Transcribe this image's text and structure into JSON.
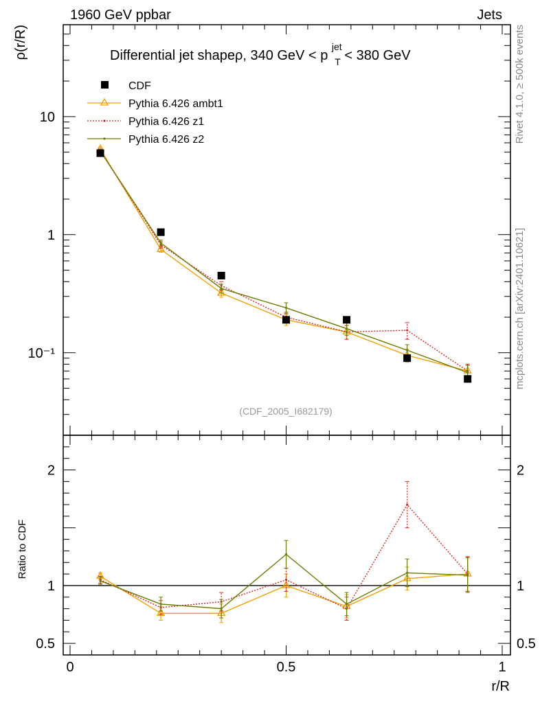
{
  "header": {
    "left": "1960 GeV ppbar",
    "right": "Jets"
  },
  "side": {
    "rivet": "Rivet 4.1.0, ≥ 500k events",
    "mcplots": "mcplots.cern.ch [arXiv:2401.10621]"
  },
  "watermark": "(CDF_2005_I682179)",
  "chart_data": {
    "type": "line",
    "title": {
      "prefix": "Differential jet shapeρ, 340 GeV < p",
      "sup": "jet",
      "sub": "T",
      "suffix": " < 380 GeV"
    },
    "xlabel": "r/R",
    "ylabel": "ρ(r/R)",
    "ratio_ylabel": "Ratio to CDF",
    "xlim": [
      0,
      1
    ],
    "ylim": [
      0.02,
      60
    ],
    "yscale": "log",
    "ratio_ylim": [
      0.4,
      2.3
    ],
    "x_ticks": [
      0,
      0.5,
      1
    ],
    "x_tick_labels": [
      "0",
      "0.5",
      "1"
    ],
    "y_ticks": [
      0.1,
      1,
      10
    ],
    "y_tick_labels": [
      "10⁻¹",
      "1",
      "10"
    ],
    "ratio_ticks": [
      0.5,
      1,
      2
    ],
    "ratio_tick_labels": [
      "0.5",
      "1",
      "2"
    ],
    "x": [
      0.07,
      0.21,
      0.35,
      0.5,
      0.64,
      0.78,
      0.92
    ],
    "data": {
      "name": "CDF",
      "color": "#000000",
      "values": [
        4.9,
        1.05,
        0.45,
        0.19,
        0.19,
        0.09,
        0.06
      ]
    },
    "series": [
      {
        "name": "Pythia 6.426 ambt1",
        "color": "#f0a000",
        "style": "solid-triangle",
        "values": [
          5.3,
          0.75,
          0.32,
          0.19,
          0.15,
          0.095,
          0.07
        ],
        "errors": [
          0.2,
          0.04,
          0.025,
          0.02,
          0.02,
          0.012,
          0.01
        ],
        "ratio": [
          1.08,
          0.76,
          0.76,
          1.0,
          0.82,
          1.06,
          1.1
        ],
        "ratio_errors": [
          0.03,
          0.06,
          0.08,
          0.1,
          0.1,
          0.1,
          0.15
        ]
      },
      {
        "name": "Pythia 6.426 z1",
        "color": "#e02020",
        "style": "dotted",
        "values": [
          5.1,
          0.82,
          0.37,
          0.2,
          0.15,
          0.155,
          0.07
        ],
        "errors": [
          0.2,
          0.05,
          0.03,
          0.02,
          0.02,
          0.025,
          0.01
        ],
        "ratio": [
          1.05,
          0.81,
          0.86,
          1.05,
          0.8,
          1.7,
          1.1
        ],
        "ratio_errors": [
          0.03,
          0.06,
          0.08,
          0.1,
          0.1,
          0.2,
          0.15
        ]
      },
      {
        "name": "Pythia 6.426 z2",
        "color": "#6b7a00",
        "style": "solid-dot",
        "values": [
          5.1,
          0.85,
          0.35,
          0.24,
          0.16,
          0.105,
          0.068
        ],
        "errors": [
          0.2,
          0.05,
          0.03,
          0.025,
          0.02,
          0.012,
          0.01
        ],
        "ratio": [
          1.04,
          0.84,
          0.8,
          1.27,
          0.84,
          1.11,
          1.09
        ],
        "ratio_errors": [
          0.03,
          0.06,
          0.08,
          0.12,
          0.1,
          0.12,
          0.15
        ]
      }
    ]
  }
}
